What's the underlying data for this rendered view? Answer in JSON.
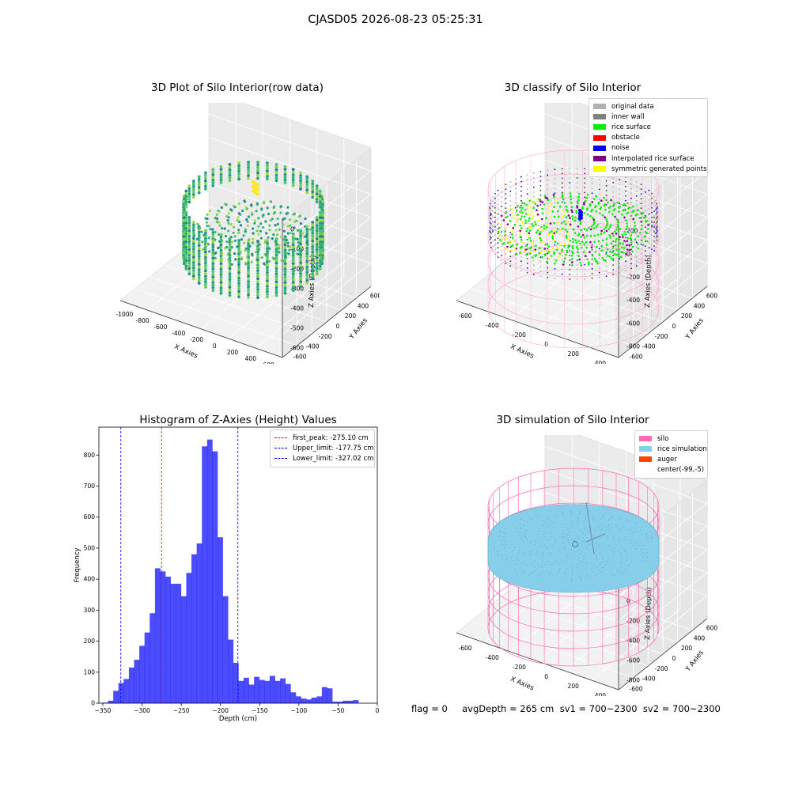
{
  "figure": {
    "suptitle": "CJASD05 2026-08-23 05:25:31",
    "footer": "flag = 0     avgDepth = 265 cm  sv1 = 700~2300  sv2 = 700~2300"
  },
  "panels": {
    "raw": {
      "title": "3D Plot of Silo Interior(row data)",
      "xlabel": "X Axies",
      "ylabel": "Y Axies",
      "zlabel": "Z Axies (Depth)",
      "xticks": [
        "-1000",
        "-800",
        "-600",
        "-400",
        "-200",
        "0",
        "200",
        "400",
        "600"
      ],
      "yticks": [
        "-600",
        "-400",
        "-200",
        "0",
        "200",
        "400",
        "600"
      ],
      "zticks": [
        "0",
        "-100",
        "-200",
        "-300",
        "-400",
        "-500",
        "-600"
      ]
    },
    "classify": {
      "title": "3D classify of Silo Interior",
      "xlabel": "X Axies",
      "ylabel": "Y Axies",
      "zlabel": "Z Axies (Depth)",
      "xticks": [
        "-600",
        "-400",
        "-200",
        "0",
        "200",
        "400"
      ],
      "yticks": [
        "-600",
        "-400",
        "-200",
        "0",
        "200",
        "400",
        "600"
      ],
      "zticks": [
        "200",
        "0",
        "-200",
        "-400",
        "-600",
        "-800"
      ],
      "zticks_top": [
        "0",
        "400",
        "200"
      ],
      "legend": [
        {
          "label": "original data",
          "color": "#b0b0b0"
        },
        {
          "label": "inner wall",
          "color": "#808080"
        },
        {
          "label": "rice surface",
          "color": "#00ee00"
        },
        {
          "label": "obstacle",
          "color": "#ff0000"
        },
        {
          "label": "noise",
          "color": "#0000ee"
        },
        {
          "label": "interpolated rice surface",
          "color": "#800080"
        },
        {
          "label": "symmetric generated points",
          "color": "#ffff00"
        }
      ]
    },
    "simulation": {
      "title": "3D simulation of Silo Interior",
      "xlabel": "X Axies",
      "ylabel": "Y Axies",
      "zlabel": "Z Axies (Depth)",
      "xticks": [
        "-600",
        "-400",
        "-200",
        "0",
        "200",
        "400"
      ],
      "yticks": [
        "-600",
        "-400",
        "-200",
        "0",
        "200",
        "400",
        "600"
      ],
      "zticks": [
        "400",
        "200",
        "0",
        "-200",
        "-400",
        "-600",
        "-800"
      ],
      "legend": [
        {
          "label": "silo",
          "color": "#ff69b4"
        },
        {
          "label": "rice simulation",
          "color": "#87ceeb"
        },
        {
          "label": "auger",
          "color": "#ff4500"
        },
        {
          "label": "center(-99,-5)",
          "color": ""
        }
      ]
    }
  },
  "chart_data": [
    {
      "type": "bar",
      "title": "Histogram of Z-Axies (Height) Values",
      "xlabel": "Depth (cm)",
      "ylabel": "Frequency",
      "xlim": [
        -355,
        0
      ],
      "ylim": [
        0,
        890
      ],
      "xticks": [
        -350,
        -300,
        -250,
        -200,
        -150,
        -100,
        -50,
        0
      ],
      "yticks": [
        0,
        100,
        200,
        300,
        400,
        500,
        600,
        700,
        800
      ],
      "bar_color": "#0000ff",
      "bin_start": -350,
      "bin_width": 6.65,
      "values": [
        2,
        8,
        40,
        65,
        78,
        115,
        140,
        185,
        228,
        290,
        435,
        425,
        408,
        385,
        385,
        345,
        420,
        480,
        515,
        828,
        850,
        812,
        535,
        345,
        205,
        130,
        72,
        82,
        60,
        85,
        75,
        72,
        88,
        72,
        80,
        62,
        35,
        22,
        15,
        12,
        18,
        22,
        52,
        48,
        5,
        5,
        8,
        8,
        10
      ],
      "lines": [
        {
          "label": "first_peak: -275.10 cm",
          "x": -275.1,
          "color": "#ff0000"
        },
        {
          "label": "Upper_limit: -177.75 cm",
          "x": -177.75,
          "color": "#0000ff"
        },
        {
          "label": "Lower_limit: -327.02 cm",
          "x": -327.02,
          "color": "#0000ff"
        }
      ]
    }
  ]
}
